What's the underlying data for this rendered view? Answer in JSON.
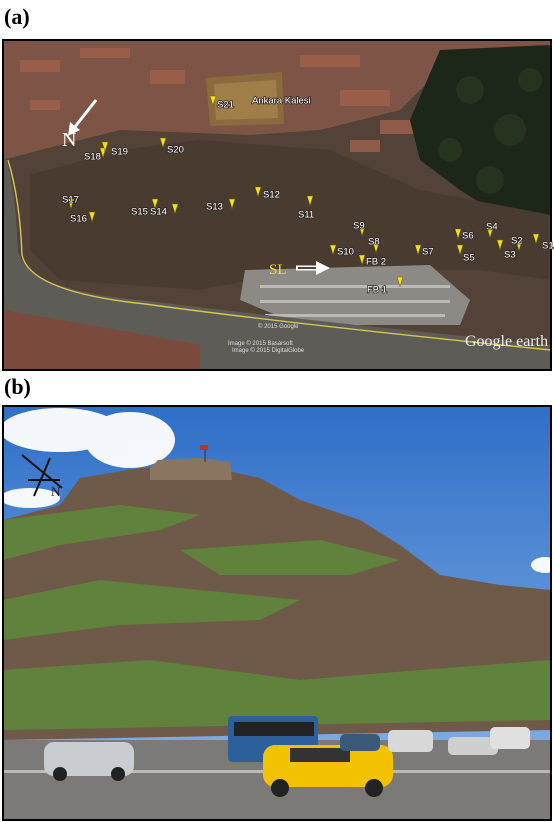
{
  "panel_a": {
    "label": "(a)",
    "landmark": "Ankara Kalesi",
    "north": "N",
    "slide": "SL",
    "stations": [
      "S1",
      "S2",
      "S3",
      "S4",
      "S5",
      "S6",
      "S7",
      "S8",
      "S9",
      "S10",
      "S11",
      "S12",
      "S13",
      "S14",
      "S15",
      "S16",
      "S17",
      "S18",
      "S19",
      "S20",
      "S21"
    ],
    "boreholes": [
      "FB 1",
      "FB 2"
    ],
    "watermark": "Google earth",
    "credits": [
      "© 2015 Google",
      "Image © 2015 Basarsoft",
      "Image © 2015 DigitalGlobe"
    ]
  },
  "panel_b": {
    "label": "(b)",
    "north": "N"
  }
}
